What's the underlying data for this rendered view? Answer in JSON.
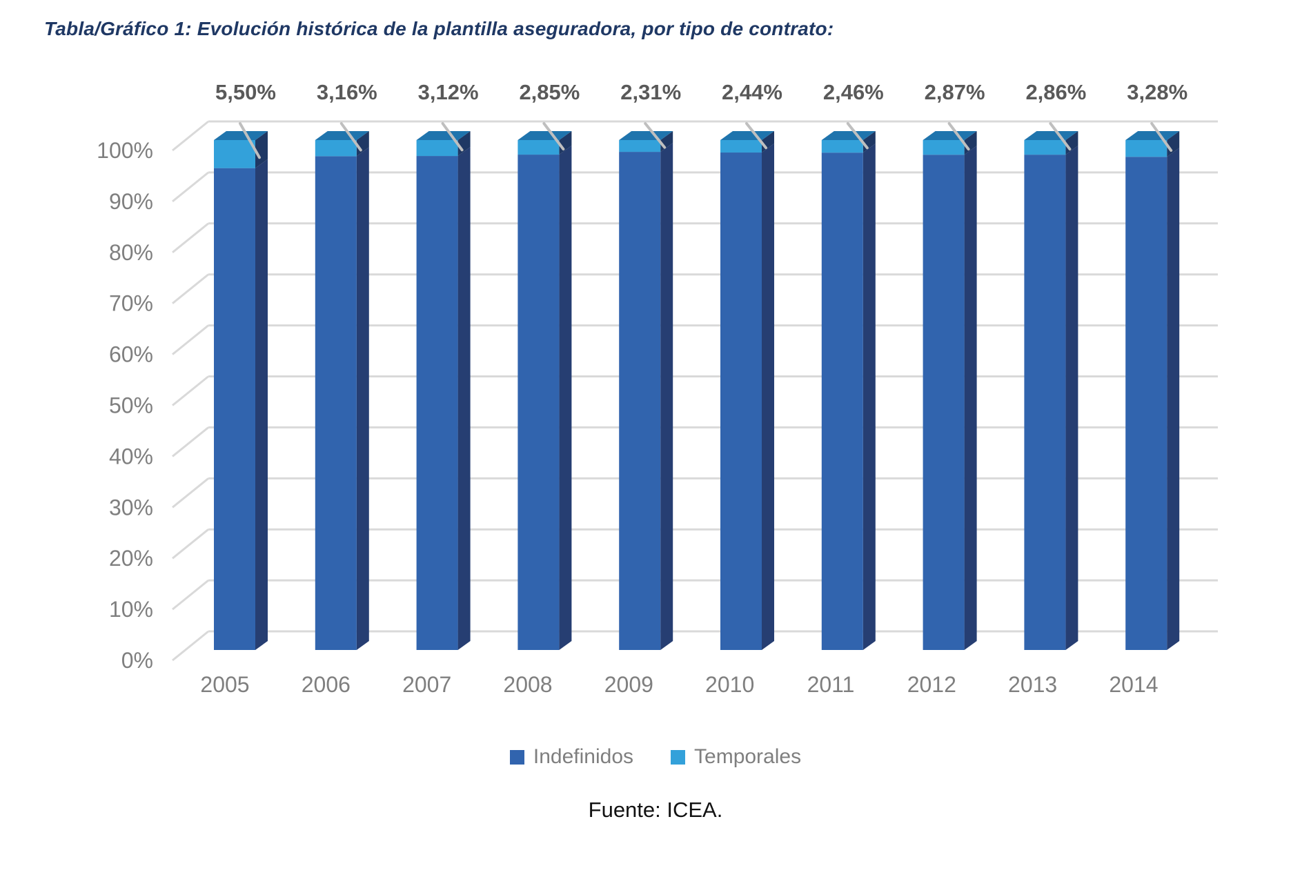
{
  "title": "Tabla/Gráfico 1: Evolución histórica de la plantilla aseguradora, por tipo de contrato:",
  "source": "Fuente: ICEA.",
  "chart_data": {
    "type": "bar",
    "subtype": "stacked-100-3d",
    "categories": [
      "2005",
      "2006",
      "2007",
      "2008",
      "2009",
      "2010",
      "2011",
      "2012",
      "2013",
      "2014"
    ],
    "series": [
      {
        "name": "Indefinidos",
        "color": "#3164AE",
        "side_color": "#263E72",
        "values": [
          94.5,
          96.84,
          96.88,
          97.15,
          97.69,
          97.56,
          97.54,
          97.13,
          97.14,
          96.72
        ]
      },
      {
        "name": "Temporales",
        "color": "#33A1DA",
        "side_color": "#1F3864",
        "values": [
          5.5,
          3.16,
          3.12,
          2.85,
          2.31,
          2.44,
          2.46,
          2.87,
          2.86,
          3.28
        ]
      }
    ],
    "data_labels": [
      "5,50%",
      "3,16%",
      "3,12%",
      "2,85%",
      "2,31%",
      "2,44%",
      "2,46%",
      "2,87%",
      "2,86%",
      "3,28%"
    ],
    "y_ticks": [
      "0%",
      "10%",
      "20%",
      "30%",
      "40%",
      "50%",
      "60%",
      "70%",
      "80%",
      "90%",
      "100%"
    ],
    "ylim": [
      0,
      100
    ],
    "grid": true,
    "legend_position": "bottom",
    "top_face_color": "#1F74AD",
    "gridline_color": "#D9D9D9",
    "leader_line_color": "#BFBFBF",
    "axis_text_color": "#7F7F7F",
    "data_label_color": "#595959"
  }
}
